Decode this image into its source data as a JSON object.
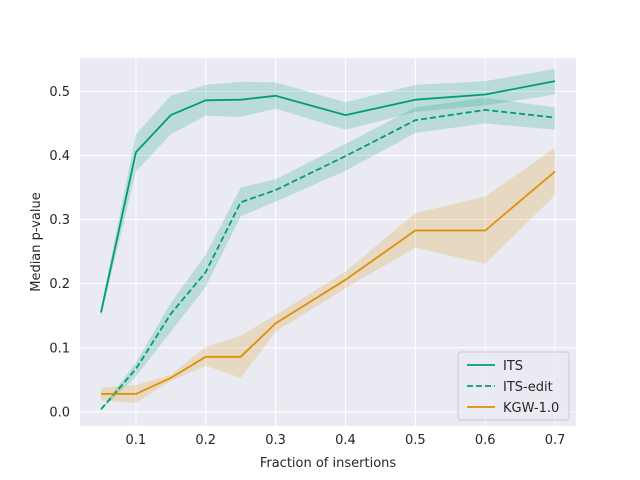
{
  "chart_data": {
    "type": "line",
    "title": "",
    "xlabel": "Fraction of insertions",
    "ylabel": "Median p-value",
    "xlim": [
      0.02,
      0.73
    ],
    "ylim": [
      -0.022,
      0.552
    ],
    "x_ticks": [
      0.1,
      0.2,
      0.3,
      0.4,
      0.5,
      0.6,
      0.7
    ],
    "x_tick_labels": [
      "0.1",
      "0.2",
      "0.3",
      "0.4",
      "0.5",
      "0.6",
      "0.7"
    ],
    "y_ticks": [
      0.0,
      0.1,
      0.2,
      0.3,
      0.4,
      0.5
    ],
    "y_tick_labels": [
      "0.0",
      "0.1",
      "0.2",
      "0.3",
      "0.4",
      "0.5"
    ],
    "grid": true,
    "legend_position": "bottom-right",
    "x": [
      0.05,
      0.1,
      0.15,
      0.2,
      0.25,
      0.3,
      0.4,
      0.5,
      0.6,
      0.7
    ],
    "series": [
      {
        "name": "ITS",
        "color": "#009e73",
        "dash": "solid",
        "values": [
          0.155,
          0.405,
          0.463,
          0.486,
          0.487,
          0.493,
          0.463,
          0.487,
          0.495,
          0.516
        ],
        "lower": [
          0.148,
          0.375,
          0.433,
          0.462,
          0.46,
          0.473,
          0.44,
          0.468,
          0.478,
          0.495
        ],
        "upper": [
          0.162,
          0.433,
          0.493,
          0.51,
          0.515,
          0.514,
          0.483,
          0.51,
          0.516,
          0.535
        ]
      },
      {
        "name": "ITS-edit",
        "color": "#009e73",
        "dash": "dashed",
        "values": [
          0.004,
          0.067,
          0.153,
          0.218,
          0.327,
          0.346,
          0.399,
          0.455,
          0.471,
          0.459
        ],
        "lower": [
          0.003,
          0.055,
          0.125,
          0.195,
          0.305,
          0.328,
          0.376,
          0.435,
          0.45,
          0.44
        ],
        "upper": [
          0.005,
          0.077,
          0.17,
          0.245,
          0.35,
          0.363,
          0.418,
          0.475,
          0.49,
          0.475
        ]
      },
      {
        "name": "KGW-1.0",
        "color": "#de8f05",
        "dash": "solid",
        "values": [
          0.028,
          0.028,
          0.053,
          0.086,
          0.086,
          0.138,
          0.206,
          0.283,
          0.283,
          0.375
        ],
        "lower": [
          0.018,
          0.014,
          0.048,
          0.072,
          0.053,
          0.125,
          0.193,
          0.256,
          0.231,
          0.338
        ],
        "upper": [
          0.038,
          0.042,
          0.058,
          0.101,
          0.119,
          0.151,
          0.219,
          0.31,
          0.336,
          0.412
        ]
      }
    ]
  }
}
